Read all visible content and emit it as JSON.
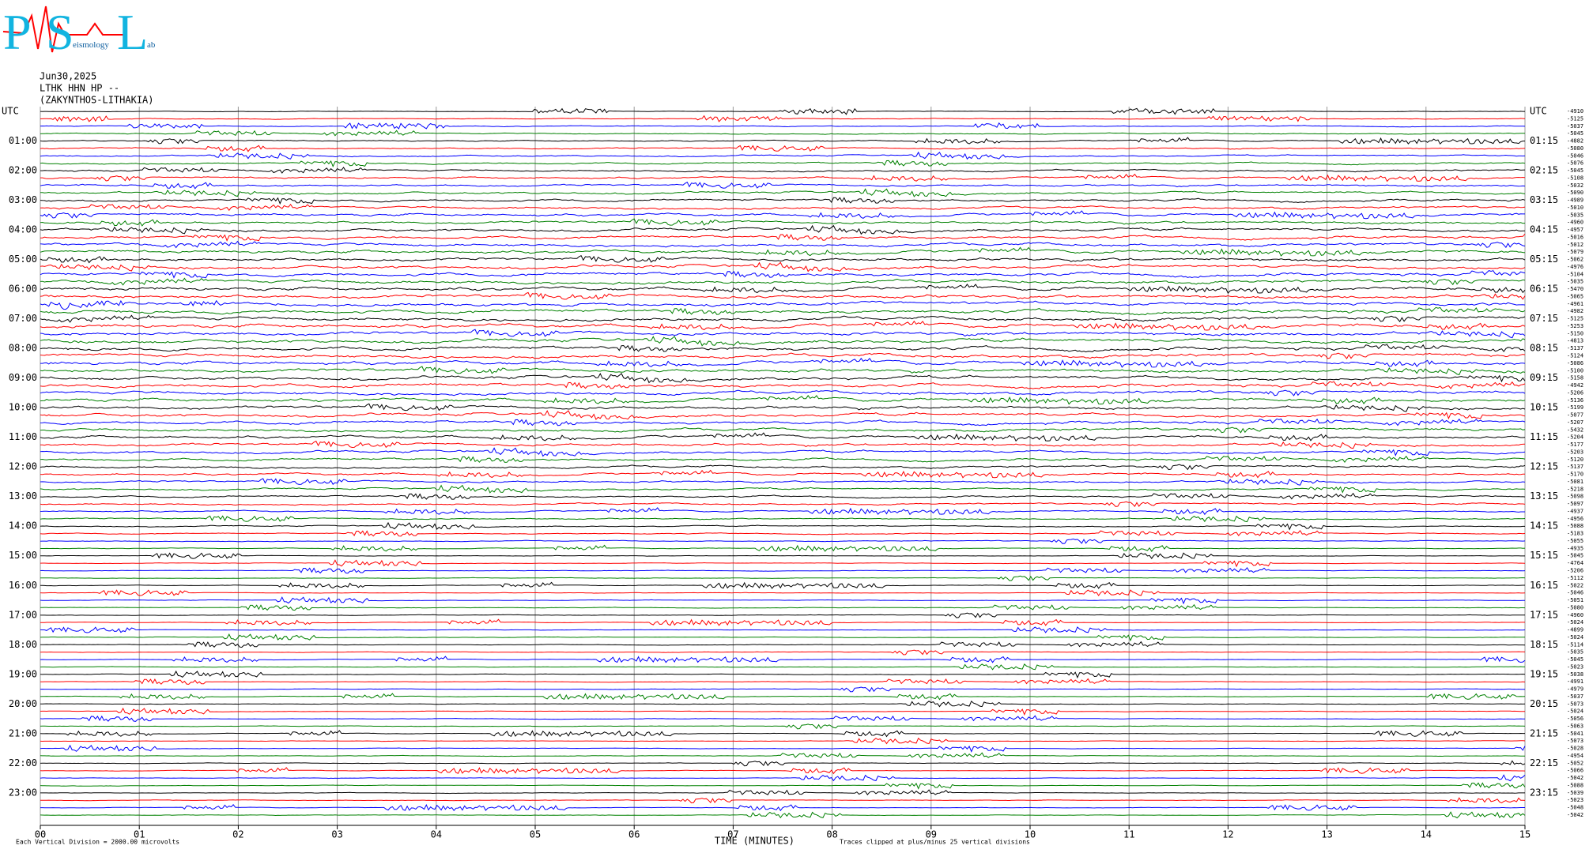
{
  "header": {
    "logo_letters": [
      "P",
      "S",
      "L"
    ],
    "logo_words": [
      "eismology",
      "ab"
    ]
  },
  "chart_data": {
    "type": "helicorder",
    "date": "Jun30,2025",
    "station": "LTHK HHN HP --",
    "location": "(ZAKYNTHOS-LITHAKIA)",
    "left_labels": [
      "UTC",
      "01:00",
      "02:00",
      "03:00",
      "04:00",
      "05:00",
      "06:00",
      "07:00",
      "08:00",
      "09:00",
      "10:00",
      "11:00",
      "12:00",
      "13:00",
      "14:00",
      "15:00",
      "16:00",
      "17:00",
      "18:00",
      "19:00",
      "20:00",
      "21:00",
      "22:00",
      "23:00"
    ],
    "right_labels": [
      "UTC",
      "01:15",
      "02:15",
      "03:15",
      "04:15",
      "05:15",
      "06:15",
      "07:15",
      "08:15",
      "09:15",
      "10:15",
      "11:15",
      "12:15",
      "13:15",
      "14:15",
      "15:15",
      "16:15",
      "17:15",
      "18:15",
      "19:15",
      "20:15",
      "21:15",
      "22:15",
      "23:15"
    ],
    "offsets": [
      -4910,
      -5125,
      -5037,
      -5045,
      -4882,
      -5080,
      -5046,
      -5076,
      -5045,
      -5108,
      -5032,
      -5090,
      -4989,
      -5010,
      -5035,
      -4960,
      -4957,
      -5016,
      -5012,
      -5079,
      -5062,
      -4976,
      -5104,
      -5035,
      -5470,
      -5065,
      -4961,
      -4982,
      -5125,
      -5253,
      -5150,
      -4813,
      -5137,
      -5124,
      -5086,
      -5100,
      -5158,
      -4942,
      -5206,
      -5136,
      -5199,
      -5077,
      -5207,
      -5432,
      -5204,
      -5177,
      -5203,
      -5120,
      -5137,
      -5170,
      -5081,
      -5218,
      -5098,
      -5097,
      -4937,
      -4956,
      -5088,
      -5183,
      -5055,
      -4935,
      -5045,
      -4764,
      -5206,
      -5112,
      -5022,
      -5046,
      -5051,
      -5080,
      -4960,
      -5024,
      -4899,
      -5024,
      -5114,
      -5035,
      -5045,
      -5023,
      -5038,
      -4991,
      -4979,
      -5037,
      -5073,
      -5024,
      -5056,
      -5063,
      -5041,
      -5073,
      -5028,
      -4954,
      -5052,
      -5066,
      -5042,
      -5088,
      -5039,
      -5023,
      -5048,
      -5042
    ],
    "trace_colors": [
      "#000000",
      "#ff0000",
      "#0000ff",
      "#008000"
    ],
    "xlim": [
      0,
      15
    ],
    "xticks": [
      {
        "value": 0,
        "label": "00"
      },
      {
        "value": 1,
        "label": "01"
      },
      {
        "value": 2,
        "label": "02"
      },
      {
        "value": 3,
        "label": "03"
      },
      {
        "value": 4,
        "label": "04"
      },
      {
        "value": 5,
        "label": "05"
      },
      {
        "value": 6,
        "label": "06"
      },
      {
        "value": 7,
        "label": "07"
      },
      {
        "value": 8,
        "label": "08"
      },
      {
        "value": 9,
        "label": "09"
      },
      {
        "value": 10,
        "label": "10"
      },
      {
        "value": 11,
        "label": "11"
      },
      {
        "value": 12,
        "label": "12"
      },
      {
        "value": 13,
        "label": "13"
      },
      {
        "value": 14,
        "label": "14"
      },
      {
        "value": 15,
        "label": "15"
      }
    ],
    "grid": true,
    "xlabel": "TIME (MINUTES)",
    "note_left": "Each Vertical Division = 2000.00 microvolts",
    "note_right": "Traces clipped at plus/minus 25 vertical divisions"
  }
}
